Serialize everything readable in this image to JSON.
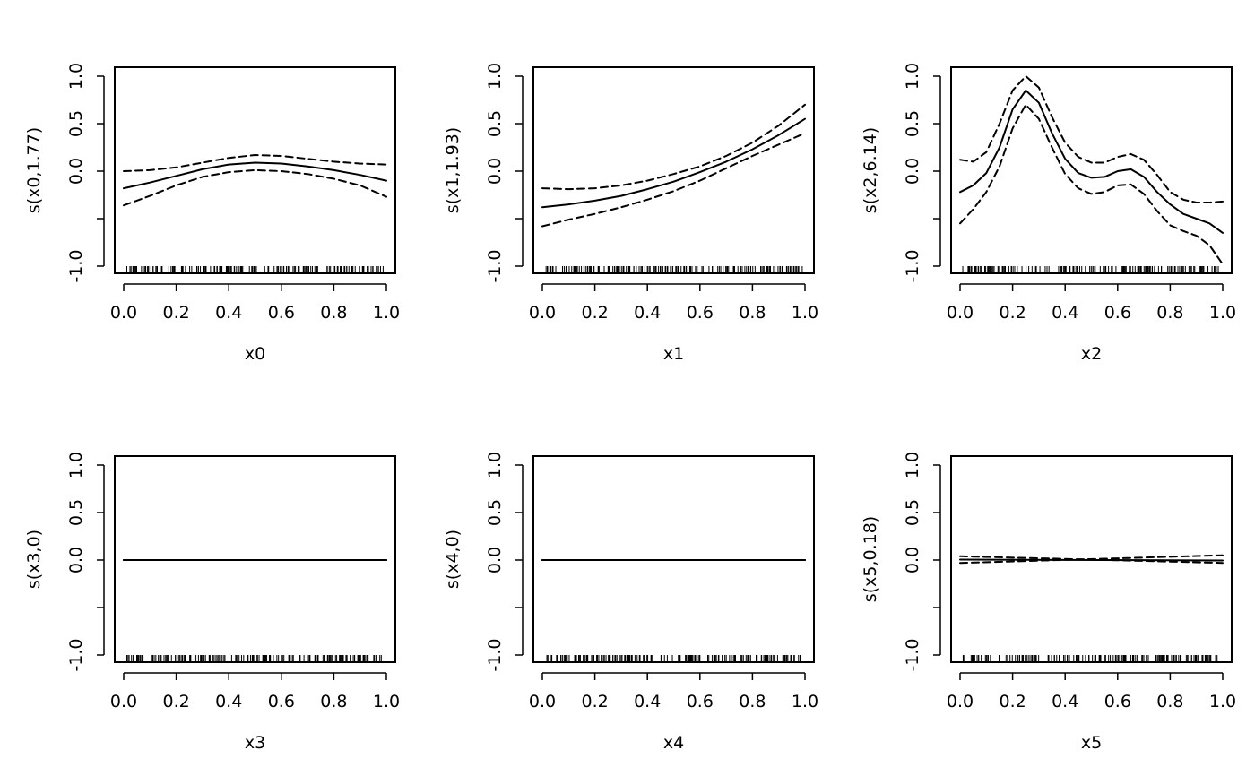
{
  "chart_data": [
    {
      "type": "line",
      "xlabel": "x0",
      "ylabel": "s(x0,1.77)",
      "xlim": [
        0,
        1
      ],
      "ylim": [
        -1,
        1
      ],
      "xticks": [
        "0.0",
        "0.2",
        "0.4",
        "0.6",
        "0.8",
        "1.0"
      ],
      "yticks": [
        "-1.0",
        "",
        "0.0",
        "0.5",
        "1.0"
      ],
      "x": [
        0.0,
        0.1,
        0.2,
        0.3,
        0.4,
        0.5,
        0.6,
        0.7,
        0.8,
        0.9,
        1.0
      ],
      "series": [
        {
          "style": "solid",
          "values": [
            -0.18,
            -0.12,
            -0.05,
            0.02,
            0.07,
            0.09,
            0.08,
            0.05,
            0.01,
            -0.04,
            -0.1
          ]
        },
        {
          "style": "dashed",
          "values": [
            0.0,
            0.01,
            0.04,
            0.09,
            0.14,
            0.17,
            0.16,
            0.13,
            0.1,
            0.08,
            0.07
          ]
        },
        {
          "style": "dashed",
          "values": [
            -0.36,
            -0.26,
            -0.15,
            -0.06,
            -0.01,
            0.01,
            0.0,
            -0.03,
            -0.08,
            -0.15,
            -0.27
          ]
        }
      ]
    },
    {
      "type": "line",
      "xlabel": "x1",
      "ylabel": "s(x1,1.93)",
      "xlim": [
        0,
        1
      ],
      "ylim": [
        -1,
        1
      ],
      "xticks": [
        "0.0",
        "0.2",
        "0.4",
        "0.6",
        "0.8",
        "1.0"
      ],
      "yticks": [
        "-1.0",
        "",
        "0.0",
        "0.5",
        "1.0"
      ],
      "x": [
        0.0,
        0.1,
        0.2,
        0.3,
        0.4,
        0.5,
        0.6,
        0.7,
        0.8,
        0.9,
        1.0
      ],
      "series": [
        {
          "style": "solid",
          "values": [
            -0.38,
            -0.35,
            -0.31,
            -0.26,
            -0.19,
            -0.11,
            -0.01,
            0.1,
            0.23,
            0.38,
            0.55
          ]
        },
        {
          "style": "dashed",
          "values": [
            -0.18,
            -0.19,
            -0.18,
            -0.15,
            -0.1,
            -0.03,
            0.05,
            0.16,
            0.3,
            0.48,
            0.7
          ]
        },
        {
          "style": "dashed",
          "values": [
            -0.58,
            -0.51,
            -0.45,
            -0.38,
            -0.3,
            -0.21,
            -0.1,
            0.03,
            0.16,
            0.28,
            0.4
          ]
        }
      ]
    },
    {
      "type": "line",
      "xlabel": "x2",
      "ylabel": "s(x2,6.14)",
      "xlim": [
        0,
        1
      ],
      "ylim": [
        -1,
        1
      ],
      "xticks": [
        "0.0",
        "0.2",
        "0.4",
        "0.6",
        "0.8",
        "1.0"
      ],
      "yticks": [
        "-1.0",
        "",
        "0.0",
        "0.5",
        "1.0"
      ],
      "x": [
        0.0,
        0.05,
        0.1,
        0.15,
        0.2,
        0.25,
        0.3,
        0.35,
        0.4,
        0.45,
        0.5,
        0.55,
        0.6,
        0.65,
        0.7,
        0.75,
        0.8,
        0.85,
        0.9,
        0.95,
        1.0
      ],
      "series": [
        {
          "style": "solid",
          "values": [
            -0.22,
            -0.15,
            -0.02,
            0.25,
            0.65,
            0.85,
            0.72,
            0.4,
            0.13,
            -0.02,
            -0.07,
            -0.06,
            0.0,
            0.02,
            -0.06,
            -0.22,
            -0.35,
            -0.45,
            -0.5,
            -0.55,
            -0.65
          ]
        },
        {
          "style": "dashed",
          "values": [
            0.12,
            0.1,
            0.2,
            0.5,
            0.85,
            1.0,
            0.88,
            0.57,
            0.3,
            0.15,
            0.09,
            0.09,
            0.15,
            0.18,
            0.12,
            -0.04,
            -0.22,
            -0.3,
            -0.33,
            -0.33,
            -0.32
          ]
        },
        {
          "style": "dashed",
          "values": [
            -0.55,
            -0.4,
            -0.22,
            0.05,
            0.45,
            0.7,
            0.55,
            0.25,
            -0.03,
            -0.18,
            -0.24,
            -0.22,
            -0.15,
            -0.14,
            -0.24,
            -0.42,
            -0.57,
            -0.63,
            -0.68,
            -0.78,
            -0.98
          ]
        }
      ]
    },
    {
      "type": "line",
      "xlabel": "x3",
      "ylabel": "s(x3,0)",
      "xlim": [
        0,
        1
      ],
      "ylim": [
        -1,
        1
      ],
      "xticks": [
        "0.0",
        "0.2",
        "0.4",
        "0.6",
        "0.8",
        "1.0"
      ],
      "yticks": [
        "-1.0",
        "",
        "0.0",
        "0.5",
        "1.0"
      ],
      "x": [
        0.0,
        1.0
      ],
      "series": [
        {
          "style": "solid",
          "values": [
            0.0,
            0.0
          ]
        },
        {
          "style": "dashed",
          "values": [
            0.0,
            0.0
          ]
        },
        {
          "style": "dashed",
          "values": [
            0.0,
            0.0
          ]
        }
      ]
    },
    {
      "type": "line",
      "xlabel": "x4",
      "ylabel": "s(x4,0)",
      "xlim": [
        0,
        1
      ],
      "ylim": [
        -1,
        1
      ],
      "xticks": [
        "0.0",
        "0.2",
        "0.4",
        "0.6",
        "0.8",
        "1.0"
      ],
      "yticks": [
        "-1.0",
        "",
        "0.0",
        "0.5",
        "1.0"
      ],
      "x": [
        0.0,
        1.0
      ],
      "series": [
        {
          "style": "solid",
          "values": [
            0.0,
            0.0
          ]
        },
        {
          "style": "dashed",
          "values": [
            0.0,
            0.0
          ]
        },
        {
          "style": "dashed",
          "values": [
            0.0,
            0.0
          ]
        }
      ]
    },
    {
      "type": "line",
      "xlabel": "x5",
      "ylabel": "s(x5,0.18)",
      "xlim": [
        0,
        1
      ],
      "ylim": [
        -1,
        1
      ],
      "xticks": [
        "0.0",
        "0.2",
        "0.4",
        "0.6",
        "0.8",
        "1.0"
      ],
      "yticks": [
        "-1.0",
        "",
        "0.0",
        "0.5",
        "1.0"
      ],
      "x": [
        0.0,
        1.0
      ],
      "series": [
        {
          "style": "solid",
          "values": [
            0.005,
            -0.005
          ]
        },
        {
          "style": "dashed",
          "values": [
            0.04,
            -0.03
          ]
        },
        {
          "style": "dashed",
          "values": [
            -0.03,
            0.05
          ]
        }
      ]
    }
  ]
}
